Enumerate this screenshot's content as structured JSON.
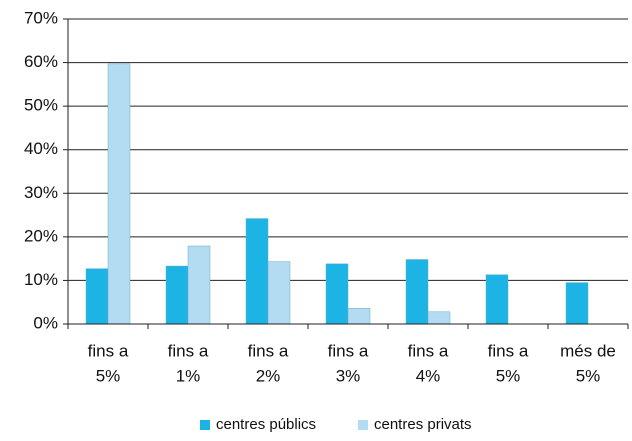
{
  "chart_data": {
    "type": "bar",
    "categories": [
      [
        "fins a",
        "5%"
      ],
      [
        "fins a",
        "1%"
      ],
      [
        "fins a",
        "2%"
      ],
      [
        "fins a",
        "3%"
      ],
      [
        "fins a",
        "4%"
      ],
      [
        "fins a",
        "5%"
      ],
      [
        "més de",
        "5%"
      ]
    ],
    "series": [
      {
        "name": "centres públics",
        "color": "#1bb4e5",
        "values": [
          12.7,
          13.3,
          24.2,
          13.8,
          14.8,
          11.3,
          9.5
        ]
      },
      {
        "name": "centres privats",
        "color": "#b3dcf3",
        "values": [
          59.7,
          17.9,
          14.3,
          3.6,
          2.8,
          null,
          null
        ]
      }
    ],
    "ylim": [
      0,
      70
    ],
    "yticks": [
      {
        "value": 0,
        "label": "0%"
      },
      {
        "value": 10,
        "label": "10%"
      },
      {
        "value": 20,
        "label": "20%"
      },
      {
        "value": 30,
        "label": "30%"
      },
      {
        "value": 40,
        "label": "40%"
      },
      {
        "value": 50,
        "label": "50%"
      },
      {
        "value": 60,
        "label": "60%"
      },
      {
        "value": 70,
        "label": "70%"
      }
    ],
    "grid": true,
    "legend": "bottom"
  }
}
